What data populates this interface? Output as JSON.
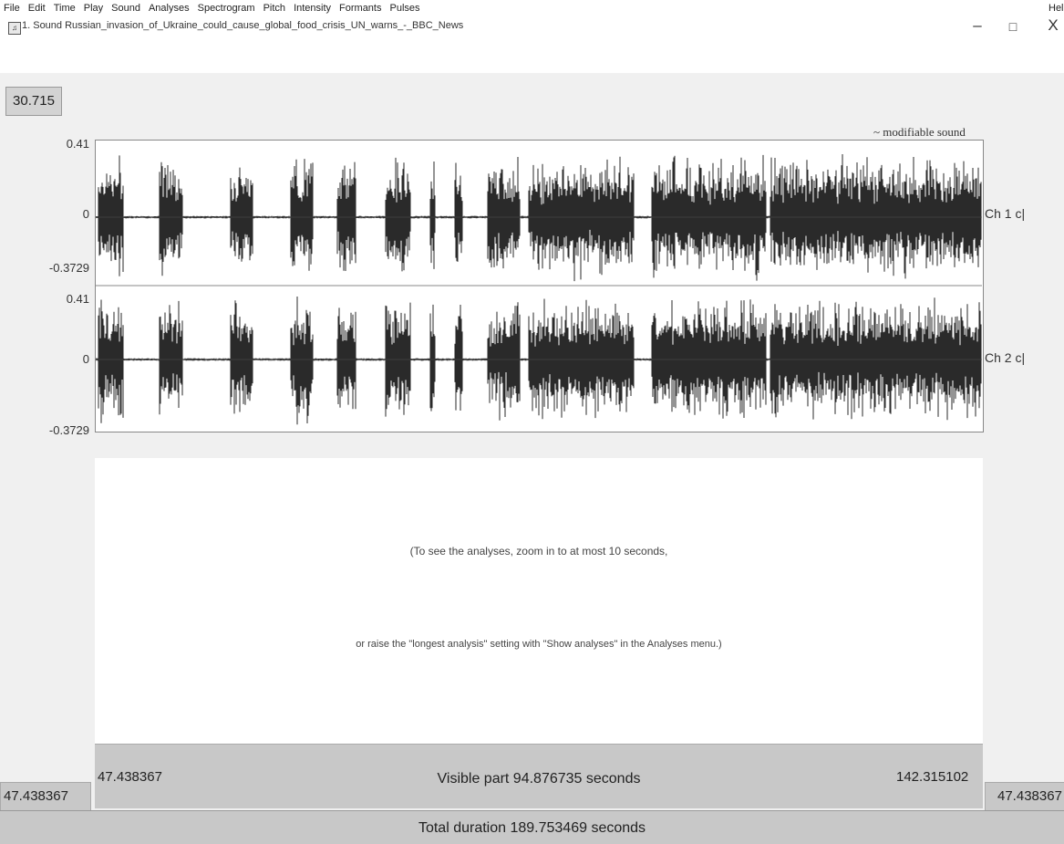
{
  "window": {
    "title": "1. Sound Russian_invasion_of_Ukraine_could_cause_global_food_crisis_UN_warns_-_BBC_News",
    "minimize": "–",
    "maximize": "□",
    "close": "X",
    "icon": "praat-window-icon"
  },
  "menu": {
    "items": [
      "File",
      "Edit",
      "Time",
      "Play",
      "Sound",
      "Analyses",
      "Spectrogram",
      "Pitch",
      "Intensity",
      "Formants",
      "Pulses"
    ],
    "help": "Help"
  },
  "selection_time": "30.715",
  "sound_label": "~ modifiable sound",
  "channels": [
    {
      "label": "Ch 1 c|",
      "max": "0.41",
      "zero": "0",
      "min": "-0.3729"
    },
    {
      "label": "Ch 2 c|",
      "max": "0.41",
      "zero": "0",
      "min": "-0.3729"
    }
  ],
  "analysis": {
    "message_1": "(To see the analyses, zoom in to at most 10 seconds,",
    "message_2": "or raise the \"longest analysis\" setting with \"Show analyses\" in the Analyses menu.)"
  },
  "visible": {
    "start": "47.438367",
    "label": "Visible part 94.876735 seconds",
    "end": "142.315102"
  },
  "left_time": "47.438367",
  "right_time": "47.438367",
  "total_duration": "Total duration 189.753469 seconds"
}
